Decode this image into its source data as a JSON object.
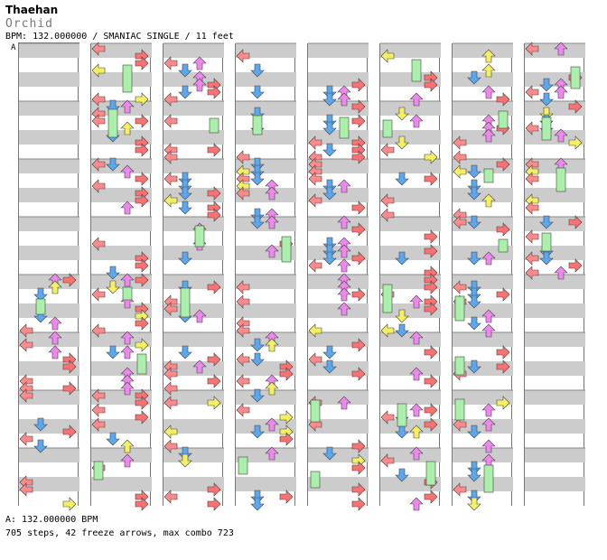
{
  "header": {
    "artist": "Thaehan",
    "title": "Orchid",
    "info": "BPM: 132.000000 / SMANIAC SINGLE / 11 feet",
    "bpm_marker": "A"
  },
  "footer": {
    "bpm_line": "A: 132.000000 BPM",
    "stats": "705 steps, 42 freeze arrows, max combo 723"
  },
  "chart": {
    "columns": 8,
    "measures_per_column": 8,
    "last_column_measures": 4,
    "total_steps": 705,
    "freeze_arrows": 42,
    "max_combo": 723
  },
  "colors": {
    "left_arrow": "#ff8a8a",
    "down_arrow": "#5aa8f0",
    "up_arrow": "#ee88ee",
    "right_arrow": "#ff7070",
    "freeze": "#aaf0aa",
    "eighth_arrow": "#f4f060",
    "stripe": "#cccccc"
  }
}
